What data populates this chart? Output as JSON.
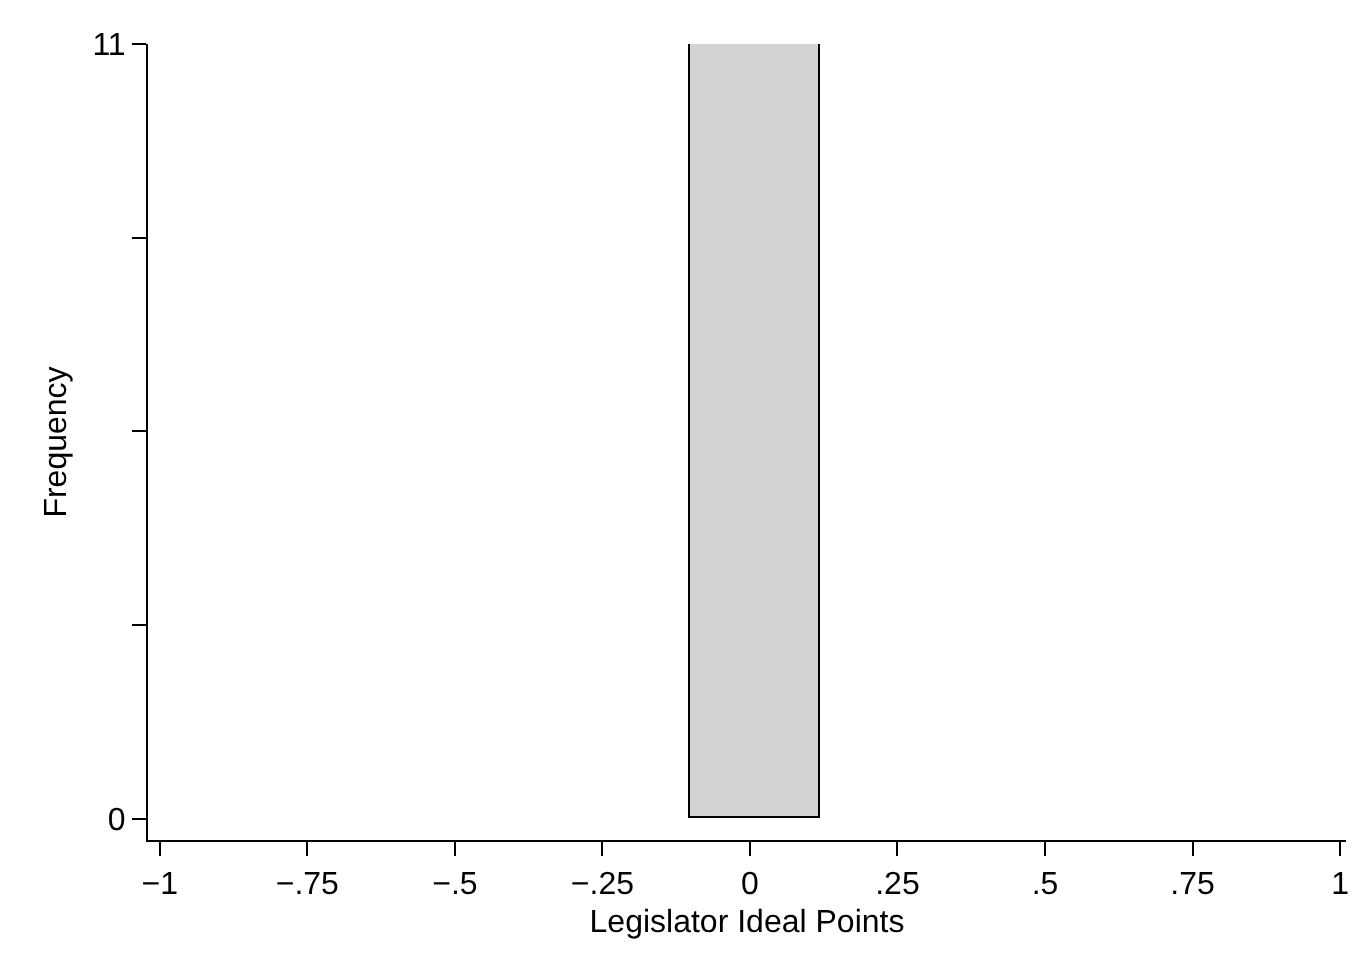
{
  "chart_data": {
    "type": "histogram",
    "xlabel": "Legislator Ideal Points",
    "ylabel": "Frequency",
    "bins": [
      -0.1,
      0.12
    ],
    "values": [
      11
    ],
    "color": "#d3d3d3",
    "xlim": [
      -1.02,
      1.01
    ],
    "xticks": [
      {
        "value": -1,
        "label": "−1"
      },
      {
        "value": -0.75,
        "label": "−.75"
      },
      {
        "value": -0.5,
        "label": "−.5"
      },
      {
        "value": -0.25,
        "label": "−.25"
      },
      0,
      {
        "value": 0.25,
        "label": ".25"
      },
      {
        "value": 0.5,
        "label": ".5"
      },
      {
        "value": 0.75,
        "label": ".75"
      },
      1
    ],
    "ylim": [
      -0.3,
      11
    ],
    "yticks": [
      0,
      {
        "value": 2.75,
        "label": null
      },
      {
        "value": 5.5,
        "label": null
      },
      {
        "value": 8.25,
        "label": null
      },
      11
    ],
    "grid": false
  }
}
